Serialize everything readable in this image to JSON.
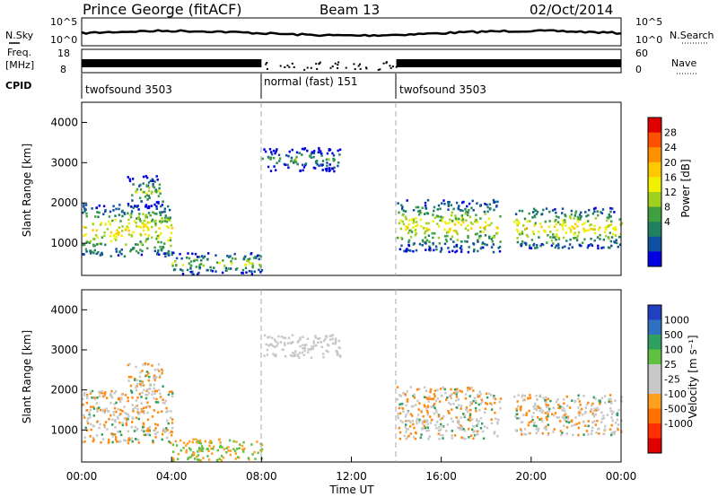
{
  "header": {
    "station": "Prince George (fitACF)",
    "beam": "Beam 13",
    "date": "02/Oct/2014"
  },
  "top_panels": {
    "nsky_label": "N.Sky",
    "nsky_ticks": [
      "10^5",
      "10^0"
    ],
    "nsearch_label": "N.Search",
    "nsearch_ticks": [
      "10^5",
      "10^0"
    ],
    "freq_label": "Freq.",
    "freq_unit": "[MHz]",
    "freq_ticks": [
      "18",
      "8"
    ],
    "nave_label": "Nave",
    "nave_ticks": [
      "60",
      "0"
    ],
    "cpid_label": "CPID",
    "cpid_segments": [
      {
        "label": "twofsound 3503",
        "start": 0,
        "end": 8
      },
      {
        "label": "normal (fast) 151",
        "start": 8,
        "end": 14
      },
      {
        "label": "twofsound 3503",
        "start": 14,
        "end": 24
      }
    ]
  },
  "chart_data": [
    {
      "type": "heatmap",
      "title": "",
      "xlabel": "Time UT",
      "ylabel": "Slant Range [km]",
      "xlim": [
        0,
        24
      ],
      "ylim": [
        200,
        4500
      ],
      "x_ticks": [
        "00:00",
        "04:00",
        "08:00",
        "12:00",
        "16:00",
        "20:00",
        "00:00"
      ],
      "y_ticks": [
        "1000",
        "2000",
        "3000",
        "4000"
      ],
      "colorbar": {
        "label": "Power [dB]",
        "ticks": [
          "28",
          "24",
          "20",
          "16",
          "12",
          "8",
          "4"
        ],
        "colors": [
          "#e00000",
          "#ff5000",
          "#ff9000",
          "#ffc800",
          "#f0f000",
          "#a0d020",
          "#40a040",
          "#208060",
          "#1050a0",
          "#0000e0"
        ]
      },
      "echo_bands": [
        {
          "t0": 0.0,
          "t1": 4.0,
          "r0": 700,
          "r1": 2000,
          "level": 0.55
        },
        {
          "t0": 2.0,
          "t1": 3.6,
          "r0": 1900,
          "r1": 2700,
          "level": 0.3
        },
        {
          "t0": 4.0,
          "t1": 8.0,
          "r0": 250,
          "r1": 800,
          "level": 0.35
        },
        {
          "t0": 8.0,
          "t1": 11.5,
          "r0": 2800,
          "r1": 3400,
          "level": 0.15
        },
        {
          "t0": 14.0,
          "t1": 18.6,
          "r0": 800,
          "r1": 2100,
          "level": 0.5
        },
        {
          "t0": 19.2,
          "t1": 24.0,
          "r0": 900,
          "r1": 1900,
          "level": 0.55
        }
      ]
    },
    {
      "type": "heatmap",
      "title": "",
      "xlabel": "Time UT",
      "ylabel": "Slant Range [km]",
      "xlim": [
        0,
        24
      ],
      "ylim": [
        200,
        4500
      ],
      "x_ticks": [
        "00:00",
        "04:00",
        "08:00",
        "12:00",
        "16:00",
        "20:00",
        "00:00"
      ],
      "y_ticks": [
        "1000",
        "2000",
        "3000",
        "4000"
      ],
      "colorbar": {
        "label": "Velocity [m s⁻¹]",
        "ticks": [
          "1000",
          "500",
          "100",
          "25",
          "-25",
          "-100",
          "-500",
          "-1000"
        ],
        "colors": [
          "#2040c0",
          "#3070c0",
          "#30a060",
          "#60c040",
          "#c8c8c8",
          "#c8c8c8",
          "#ffa020",
          "#ff7000",
          "#ff3000",
          "#e00000"
        ]
      },
      "echo_bands": [
        {
          "t0": 0.0,
          "t1": 4.0,
          "r0": 700,
          "r1": 2000,
          "level": 0.55
        },
        {
          "t0": 2.0,
          "t1": 3.6,
          "r0": 1900,
          "r1": 2700,
          "level": 0.3
        },
        {
          "t0": 4.0,
          "t1": 8.0,
          "r0": 250,
          "r1": 800,
          "level": 0.35
        },
        {
          "t0": 8.0,
          "t1": 11.5,
          "r0": 2800,
          "r1": 3400,
          "level": 0.15
        },
        {
          "t0": 14.0,
          "t1": 18.6,
          "r0": 800,
          "r1": 2100,
          "level": 0.5
        },
        {
          "t0": 19.2,
          "t1": 24.0,
          "r0": 900,
          "r1": 1900,
          "level": 0.55
        }
      ]
    }
  ]
}
